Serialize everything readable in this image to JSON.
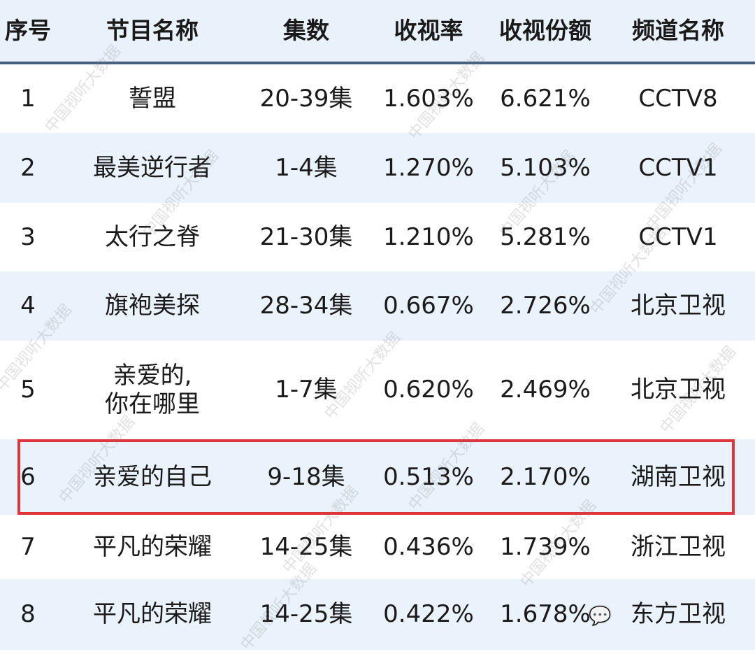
{
  "table": {
    "headers": [
      "序号",
      "节目名称",
      "集数",
      "收视率",
      "收视份额",
      "频道名称"
    ],
    "rows": [
      [
        "1",
        "誓盟",
        "20-39集",
        "1.603%",
        "6.621%",
        "CCTV8"
      ],
      [
        "2",
        "最美逆行者",
        "1-4集",
        "1.270%",
        "5.103%",
        "CCTV1"
      ],
      [
        "3",
        "太行之脊",
        "21-30集",
        "1.210%",
        "5.281%",
        "CCTV1"
      ],
      [
        "4",
        "旗袍美探",
        "28-34集",
        "0.667%",
        "2.726%",
        "北京卫视"
      ],
      [
        "5",
        "亲爱的,\n你在哪里",
        "1-7集",
        "0.620%",
        "2.469%",
        "北京卫视"
      ],
      [
        "6",
        "亲爱的自己",
        "9-18集",
        "0.513%",
        "2.170%",
        "湖南卫视"
      ],
      [
        "7",
        "平凡的荣耀",
        "14-25集",
        "0.436%",
        "1.739%",
        "浙江卫视"
      ],
      [
        "8",
        "平凡的荣耀",
        "14-25集",
        "0.422%",
        "1.678%",
        "东方卫视"
      ]
    ],
    "highlighted_row": 6
  },
  "watermark": "中国视听大数据",
  "colors": {
    "header_bg": "#e9f1fa",
    "header_rule": "#47607f",
    "alt_row": "#eaf2fb",
    "highlight": "#e0353b"
  },
  "icons": {
    "wechat": "wechat-icon"
  }
}
